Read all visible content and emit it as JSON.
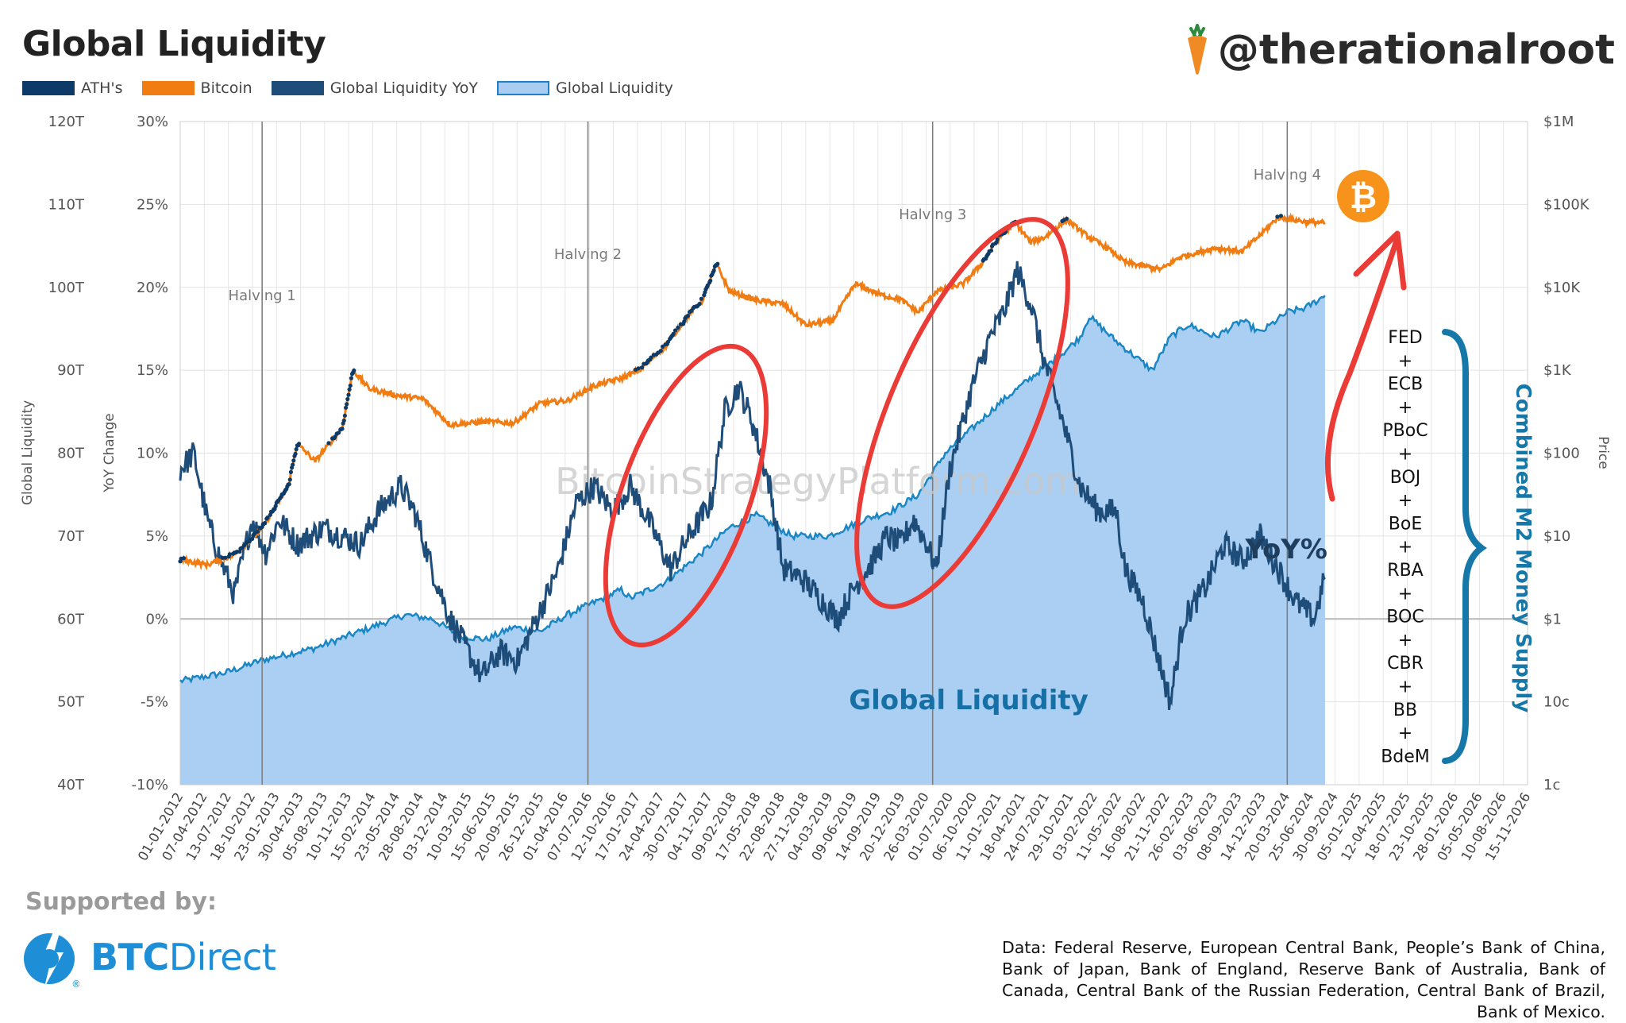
{
  "header": {
    "title": "Global Liquidity",
    "handle": "@therationalroot"
  },
  "legend": [
    {
      "label": "ATH's",
      "color": "#0e3a67"
    },
    {
      "label": "Bitcoin",
      "color": "#f07c12"
    },
    {
      "label": "Global Liquidity YoY",
      "color": "#1f4d7a"
    },
    {
      "label": "Global Liquidity",
      "color": "#a8cdf1"
    }
  ],
  "chart_data": {
    "type": "line",
    "title": "Global Liquidity",
    "watermark": "BitcoinStrategyPlatform.com",
    "axes": {
      "left_outer": {
        "label": "Global Liquidity",
        "ticks": [
          "120T",
          "110T",
          "100T",
          "90T",
          "80T",
          "70T",
          "60T",
          "50T",
          "40T"
        ],
        "range": [
          40,
          120
        ]
      },
      "left_inner": {
        "label": "YoY Change",
        "ticks": [
          "30%",
          "25%",
          "20%",
          "15%",
          "10%",
          "5%",
          "0%",
          "-5%",
          "-10%"
        ],
        "range": [
          -10,
          30
        ]
      },
      "right": {
        "label": "Price",
        "ticks": [
          "$1M",
          "$100K",
          "$10K",
          "$1K",
          "$100",
          "$10",
          "$1",
          "10c",
          "1c"
        ],
        "log_range": [
          -2,
          6
        ]
      },
      "x": {
        "ticks": [
          "01-01-2012",
          "07-04-2012",
          "13-07-2012",
          "18-10-2012",
          "23-01-2013",
          "30-04-2013",
          "05-08-2013",
          "10-11-2013",
          "15-02-2014",
          "23-05-2014",
          "28-08-2014",
          "03-12-2014",
          "10-03-2015",
          "15-06-2015",
          "20-09-2015",
          "26-12-2015",
          "01-04-2016",
          "07-07-2016",
          "12-10-2016",
          "17-01-2017",
          "24-04-2017",
          "30-07-2017",
          "04-11-2017",
          "09-02-2018",
          "17-05-2018",
          "22-08-2018",
          "27-11-2018",
          "04-03-2019",
          "09-06-2019",
          "14-09-2019",
          "20-12-2019",
          "26-03-2020",
          "01-07-2020",
          "06-10-2020",
          "11-01-2021",
          "18-04-2021",
          "24-07-2021",
          "29-10-2021",
          "03-02-2022",
          "11-05-2022",
          "16-08-2022",
          "21-11-2022",
          "26-02-2023",
          "03-06-2023",
          "08-09-2023",
          "14-12-2023",
          "20-03-2024",
          "25-06-2024",
          "30-09-2024",
          "05-01-2025",
          "12-04-2025",
          "18-07-2025",
          "23-10-2025",
          "28-01-2026",
          "05-05-2026",
          "10-08-2026",
          "15-11-2026"
        ],
        "range": [
          2012.0,
          2026.97
        ]
      }
    },
    "halvings": [
      {
        "label": "Halving 1",
        "x": 2012.91
      },
      {
        "label": "Halving 2",
        "x": 2016.53
      },
      {
        "label": "Halving 3",
        "x": 2020.36
      },
      {
        "label": "Halving 4",
        "x": 2024.3
      }
    ],
    "series": [
      {
        "name": "Global Liquidity",
        "unit": "T",
        "points": [
          [
            2012.0,
            52.5
          ],
          [
            2012.5,
            53.5
          ],
          [
            2012.9,
            55
          ],
          [
            2013.5,
            56.5
          ],
          [
            2014.0,
            58.5
          ],
          [
            2014.5,
            60.5
          ],
          [
            2014.8,
            60
          ],
          [
            2015.1,
            58
          ],
          [
            2015.4,
            57.5
          ],
          [
            2015.7,
            59
          ],
          [
            2016.0,
            58.5
          ],
          [
            2016.3,
            60.5
          ],
          [
            2016.6,
            62
          ],
          [
            2016.9,
            63.5
          ],
          [
            2017.0,
            62.5
          ],
          [
            2017.4,
            64.5
          ],
          [
            2017.8,
            68
          ],
          [
            2018.1,
            71
          ],
          [
            2018.4,
            72.5
          ],
          [
            2018.8,
            70
          ],
          [
            2019.2,
            70
          ],
          [
            2019.6,
            72
          ],
          [
            2019.9,
            73
          ],
          [
            2020.2,
            75
          ],
          [
            2020.5,
            80
          ],
          [
            2020.8,
            83
          ],
          [
            2021.1,
            86
          ],
          [
            2021.5,
            89.5
          ],
          [
            2021.8,
            92
          ],
          [
            2022.0,
            94
          ],
          [
            2022.1,
            96.5
          ],
          [
            2022.4,
            93.5
          ],
          [
            2022.8,
            90
          ],
          [
            2023.0,
            94
          ],
          [
            2023.2,
            95.5
          ],
          [
            2023.5,
            94
          ],
          [
            2023.8,
            96
          ],
          [
            2024.0,
            94.5
          ],
          [
            2024.3,
            97
          ],
          [
            2024.5,
            97.5
          ],
          [
            2024.72,
            99
          ]
        ]
      },
      {
        "name": "Global Liquidity YoY",
        "unit": "%",
        "points": [
          [
            2012.0,
            9
          ],
          [
            2012.15,
            10
          ],
          [
            2012.3,
            6
          ],
          [
            2012.45,
            3.5
          ],
          [
            2012.6,
            1.5
          ],
          [
            2012.8,
            6
          ],
          [
            2012.95,
            4
          ],
          [
            2013.1,
            6
          ],
          [
            2013.3,
            4.5
          ],
          [
            2013.6,
            5.5
          ],
          [
            2013.8,
            5
          ],
          [
            2014.0,
            4.5
          ],
          [
            2014.2,
            6.5
          ],
          [
            2014.45,
            8
          ],
          [
            2014.6,
            6.5
          ],
          [
            2014.8,
            3
          ],
          [
            2015.0,
            0
          ],
          [
            2015.2,
            -2
          ],
          [
            2015.35,
            -3.5
          ],
          [
            2015.55,
            -2
          ],
          [
            2015.75,
            -2.5
          ],
          [
            2016.0,
            0.5
          ],
          [
            2016.2,
            3
          ],
          [
            2016.4,
            7
          ],
          [
            2016.6,
            8
          ],
          [
            2016.8,
            6.5
          ],
          [
            2017.0,
            8
          ],
          [
            2017.2,
            6
          ],
          [
            2017.45,
            3
          ],
          [
            2017.65,
            5
          ],
          [
            2017.9,
            7
          ],
          [
            2018.05,
            12.5
          ],
          [
            2018.2,
            14
          ],
          [
            2018.35,
            12
          ],
          [
            2018.55,
            8
          ],
          [
            2018.7,
            3
          ],
          [
            2018.9,
            2.5
          ],
          [
            2019.15,
            1
          ],
          [
            2019.3,
            0
          ],
          [
            2019.5,
            2
          ],
          [
            2019.7,
            3.5
          ],
          [
            2019.85,
            5
          ],
          [
            2020.0,
            4.5
          ],
          [
            2020.15,
            6
          ],
          [
            2020.3,
            4.5
          ],
          [
            2020.4,
            3
          ],
          [
            2020.55,
            9
          ],
          [
            2020.8,
            14
          ],
          [
            2021.0,
            17
          ],
          [
            2021.15,
            18.5
          ],
          [
            2021.3,
            21
          ],
          [
            2021.45,
            19
          ],
          [
            2021.6,
            15.5
          ],
          [
            2021.8,
            12
          ],
          [
            2022.0,
            8
          ],
          [
            2022.2,
            6.5
          ],
          [
            2022.4,
            6.5
          ],
          [
            2022.5,
            3
          ],
          [
            2022.7,
            1
          ],
          [
            2022.9,
            -3
          ],
          [
            2023.0,
            -5
          ],
          [
            2023.15,
            0
          ],
          [
            2023.4,
            2
          ],
          [
            2023.6,
            4.5
          ],
          [
            2023.8,
            3.5
          ],
          [
            2024.0,
            5
          ],
          [
            2024.2,
            3
          ],
          [
            2024.4,
            1
          ],
          [
            2024.6,
            0
          ],
          [
            2024.72,
            2.5
          ]
        ]
      },
      {
        "name": "Bitcoin",
        "unit": "USD",
        "points": [
          [
            2012.0,
            5.2
          ],
          [
            2012.3,
            4.5
          ],
          [
            2012.6,
            6
          ],
          [
            2012.9,
            12
          ],
          [
            2013.2,
            40
          ],
          [
            2013.3,
            130
          ],
          [
            2013.5,
            80
          ],
          [
            2013.8,
            200
          ],
          [
            2013.92,
            1000
          ],
          [
            2014.1,
            600
          ],
          [
            2014.4,
            500
          ],
          [
            2014.7,
            450
          ],
          [
            2015.0,
            220
          ],
          [
            2015.4,
            240
          ],
          [
            2015.7,
            230
          ],
          [
            2016.0,
            400
          ],
          [
            2016.3,
            430
          ],
          [
            2016.6,
            650
          ],
          [
            2016.9,
            800
          ],
          [
            2017.1,
            1000
          ],
          [
            2017.4,
            2000
          ],
          [
            2017.6,
            4000
          ],
          [
            2017.8,
            7000
          ],
          [
            2017.96,
            19000
          ],
          [
            2018.1,
            9000
          ],
          [
            2018.4,
            7000
          ],
          [
            2018.7,
            6300
          ],
          [
            2018.95,
            3500
          ],
          [
            2019.25,
            4000
          ],
          [
            2019.5,
            11000
          ],
          [
            2019.8,
            8000
          ],
          [
            2020.0,
            7200
          ],
          [
            2020.2,
            5000
          ],
          [
            2020.4,
            9000
          ],
          [
            2020.7,
            11000
          ],
          [
            2020.9,
            19000
          ],
          [
            2021.1,
            40000
          ],
          [
            2021.28,
            60000
          ],
          [
            2021.45,
            35000
          ],
          [
            2021.6,
            40000
          ],
          [
            2021.85,
            65000
          ],
          [
            2022.1,
            40000
          ],
          [
            2022.3,
            30000
          ],
          [
            2022.5,
            20000
          ],
          [
            2022.9,
            16500
          ],
          [
            2023.1,
            23000
          ],
          [
            2023.5,
            30000
          ],
          [
            2023.8,
            27000
          ],
          [
            2024.0,
            43000
          ],
          [
            2024.2,
            70000
          ],
          [
            2024.5,
            62000
          ],
          [
            2024.72,
            60000
          ]
        ]
      }
    ],
    "annotations": {
      "global_liquidity_label": "Global Liquidity",
      "yoy_label": "YoY%",
      "m2_label": "Combined M2 Money Supply",
      "banks": [
        "FED",
        "+",
        "ECB",
        "+",
        "PBoC",
        "+",
        "BOJ",
        "+",
        "BoE",
        "+",
        "RBA",
        "+",
        "BOC",
        "+",
        "CBR",
        "+",
        "BB",
        "+",
        "BdeM"
      ]
    }
  },
  "footer": {
    "supported_by": "Supported by:",
    "sponsor_bold": "BTC",
    "sponsor_rest": "Direct",
    "registered": "®",
    "bitcoin_symbol": "₿",
    "source": "Data: Federal Reserve, European Central Bank, People’s Bank of China, Bank of Japan, Bank of England, Reserve Bank of Australia, Bank of Canada, Central Bank of the Russian Federation, Central Bank of Brazil, Bank of Mexico."
  }
}
